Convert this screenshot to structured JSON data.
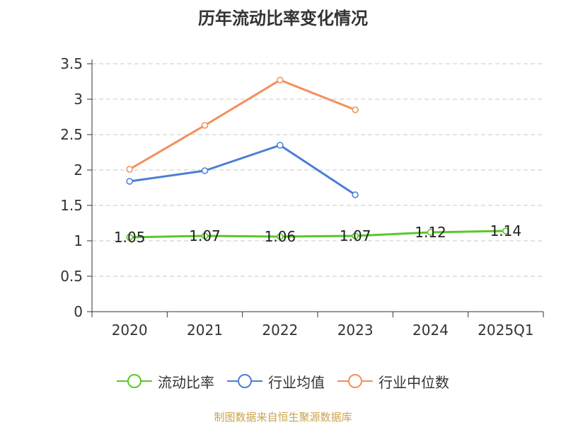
{
  "chart_data": {
    "type": "line",
    "title": "历年流动比率变化情况",
    "categories": [
      "2020",
      "2021",
      "2022",
      "2023",
      "2024",
      "2025Q1"
    ],
    "series": [
      {
        "name": "流动比率",
        "color": "#5ac828",
        "values": [
          1.05,
          1.07,
          1.06,
          1.07,
          1.12,
          1.14
        ],
        "show_labels": true
      },
      {
        "name": "行业均值",
        "color": "#4a7fd6",
        "values": [
          1.84,
          1.99,
          2.35,
          1.65,
          null,
          null
        ],
        "show_labels": false
      },
      {
        "name": "行业中位数",
        "color": "#f58e5a",
        "values": [
          2.01,
          2.63,
          3.27,
          2.85,
          null,
          null
        ],
        "show_labels": false
      }
    ],
    "y_ticks": [
      "0",
      "0.5",
      "1",
      "1.5",
      "2",
      "2.5",
      "3",
      "3.5"
    ],
    "ylim": [
      0,
      3.5
    ],
    "grid": true,
    "legend_position": "bottom"
  },
  "source": "制图数据来自恒生聚源数据库"
}
